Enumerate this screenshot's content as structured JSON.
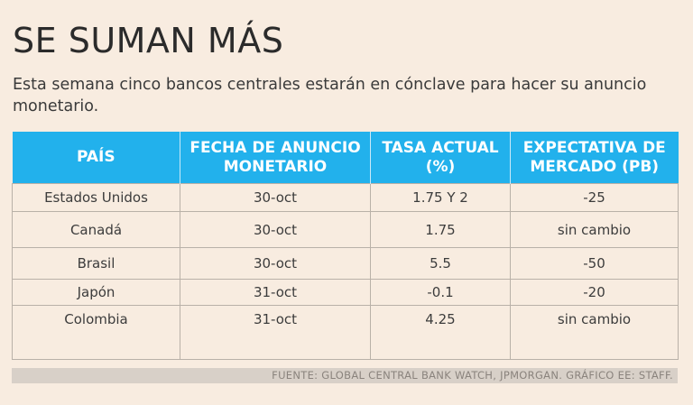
{
  "header": {
    "title": "SE SUMAN MÁS",
    "subtitle": "Esta semana cinco bancos centrales estarán en cónclave para hacer su anuncio monetario."
  },
  "colors": {
    "header_bg": "#22b1ec",
    "page_bg": "#f8ece0",
    "source_bar": "#d8d0c8"
  },
  "chart_data": {
    "type": "table",
    "title": "SE SUMAN MÁS",
    "columns": [
      "PAÍS",
      "FECHA DE ANUNCIO MONETARIO",
      "TASA ACTUAL (%)",
      "EXPECTATIVA DE MERCADO (PB)"
    ],
    "rows": [
      [
        "Estados Unidos",
        "30-oct",
        "1.75 Y 2",
        "-25"
      ],
      [
        "Canadá",
        "30-oct",
        "1.75",
        "sin cambio"
      ],
      [
        "Brasil",
        "30-oct",
        "5.5",
        "-50"
      ],
      [
        "Japón",
        "31-oct",
        "-0.1",
        "-20"
      ],
      [
        "Colombia",
        "31-oct",
        "4.25",
        "sin cambio"
      ]
    ]
  },
  "footer": {
    "source": "FUENTE: GLOBAL CENTRAL BANK WATCH, JPMORGAN. GRÁFICO EE: STAFF."
  }
}
